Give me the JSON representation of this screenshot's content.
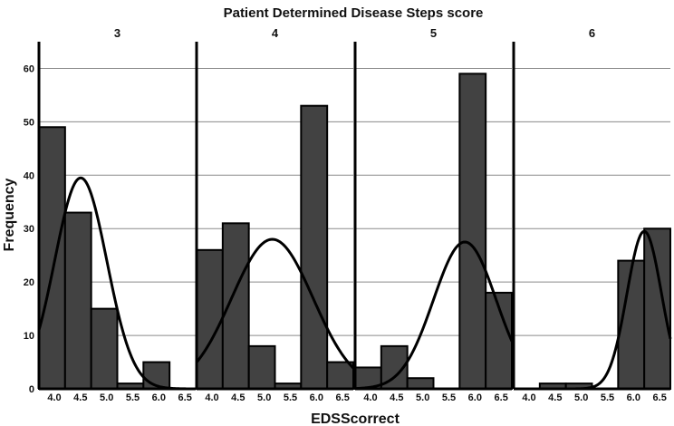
{
  "chart_data": {
    "type": "bar",
    "title": "Patient Determined Disease Steps score",
    "xlabel": "EDSScorrect",
    "ylabel": "Frequency",
    "ylim": [
      0,
      65
    ],
    "yticks": [
      0,
      10,
      20,
      30,
      40,
      50,
      60
    ],
    "categories": [
      "4.0",
      "4.5",
      "5.0",
      "5.5",
      "6.0",
      "6.5"
    ],
    "grid": true,
    "overlay": "normal curve",
    "panels": [
      {
        "name": "3",
        "values": [
          49,
          33,
          15,
          1,
          5,
          0
        ],
        "curve": {
          "mean": 4.55,
          "sd": 0.5,
          "peak": 39.5
        }
      },
      {
        "name": "4",
        "values": [
          26,
          31,
          8,
          1,
          53,
          5
        ],
        "curve": {
          "mean": 5.2,
          "sd": 0.78,
          "peak": 28
        }
      },
      {
        "name": "5",
        "values": [
          4,
          8,
          2,
          0,
          59,
          18
        ],
        "curve": {
          "mean": 5.85,
          "sd": 0.6,
          "peak": 27.5
        }
      },
      {
        "name": "6",
        "values": [
          0,
          1,
          1,
          0,
          24,
          30
        ],
        "curve": {
          "mean": 6.25,
          "sd": 0.33,
          "peak": 29.5
        }
      }
    ]
  }
}
